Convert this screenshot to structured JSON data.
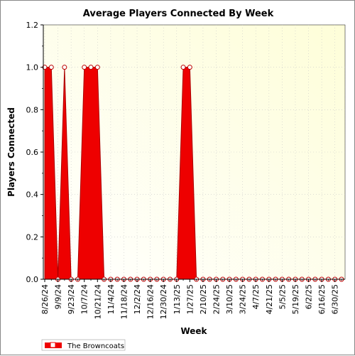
{
  "chart_data": {
    "type": "area",
    "title": "Average Players Connected By Week",
    "xlabel": "Week",
    "ylabel": "Players Connected",
    "ylim": [
      0,
      1.2
    ],
    "yticks": [
      "0.0",
      "0.2",
      "0.4",
      "0.6",
      "0.8",
      "1.0",
      "1.2"
    ],
    "x_tick_labels": [
      "8/26/24",
      "9/9/24",
      "9/23/24",
      "10/7/24",
      "10/21/24",
      "11/4/24",
      "11/18/24",
      "12/2/24",
      "12/16/24",
      "12/30/24",
      "1/13/25",
      "1/27/25",
      "2/10/25",
      "2/24/25",
      "3/10/25",
      "3/24/25",
      "4/7/25",
      "4/21/25",
      "5/5/25",
      "5/19/25",
      "6/2/25",
      "6/16/25",
      "6/30/25"
    ],
    "x": [
      "8/26/24",
      "9/2/24",
      "9/9/24",
      "9/16/24",
      "9/23/24",
      "9/30/24",
      "10/7/24",
      "10/14/24",
      "10/21/24",
      "10/28/24",
      "11/4/24",
      "11/11/24",
      "11/18/24",
      "11/25/24",
      "12/2/24",
      "12/9/24",
      "12/16/24",
      "12/23/24",
      "12/30/24",
      "1/6/25",
      "1/13/25",
      "1/20/25",
      "1/27/25",
      "2/3/25",
      "2/10/25",
      "2/17/25",
      "2/24/25",
      "3/3/25",
      "3/10/25",
      "3/17/25",
      "3/24/25",
      "3/31/25",
      "4/7/25",
      "4/14/25",
      "4/21/25",
      "4/28/25",
      "5/5/25",
      "5/12/25",
      "5/19/25",
      "5/26/25",
      "6/2/25",
      "6/9/25",
      "6/16/25",
      "6/23/25",
      "6/30/25",
      "7/7/25"
    ],
    "series": [
      {
        "name": "The Browncoats",
        "color": "#ee0000",
        "values": [
          1,
          1,
          0,
          1,
          0,
          0,
          1,
          1,
          1,
          0,
          0,
          0,
          0,
          0,
          0,
          0,
          0,
          0,
          0,
          0,
          0,
          1,
          1,
          0,
          0,
          0,
          0,
          0,
          0,
          0,
          0,
          0,
          0,
          0,
          0,
          0,
          0,
          0,
          0,
          0,
          0,
          0,
          0,
          0,
          0,
          0
        ]
      }
    ],
    "grid": true,
    "legend": "bottom-left",
    "colors": {
      "plot_background_start": "#ffffff",
      "plot_background_end": "#fefed8",
      "grid": "#c8c8c8"
    }
  }
}
